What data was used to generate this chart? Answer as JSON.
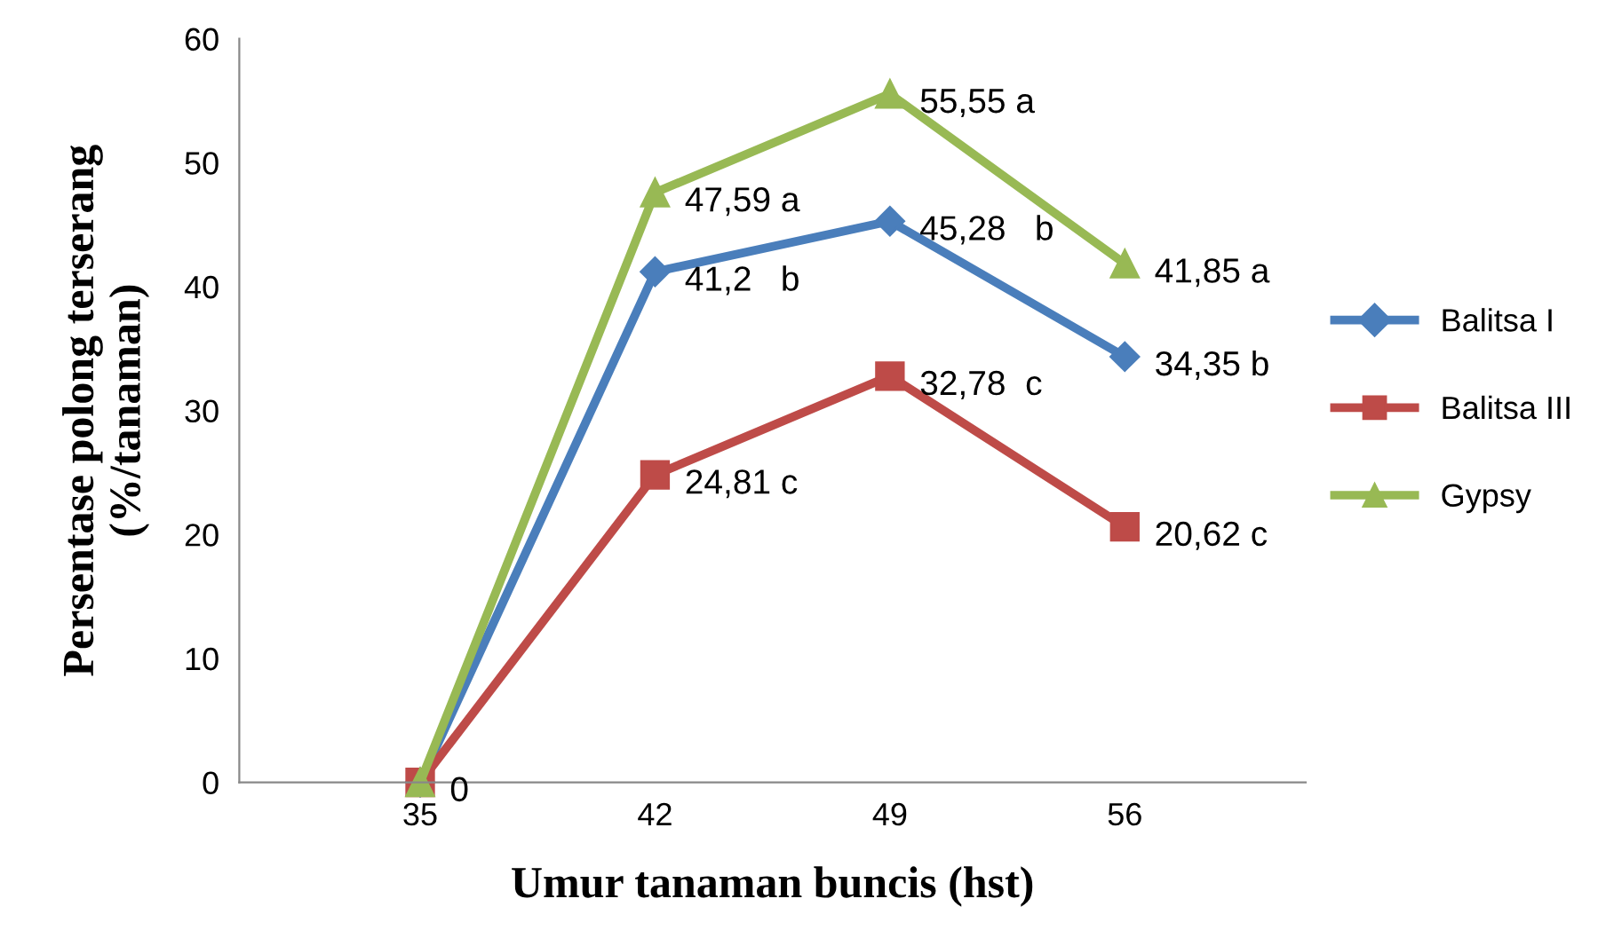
{
  "chart_data": {
    "type": "line",
    "xlabel": "Umur tanaman buncis (hst)",
    "ylabel": "Persentase polong terserang\n(%/tanaman)",
    "categories": [
      "35",
      "42",
      "49",
      "56"
    ],
    "ylim": [
      0,
      60
    ],
    "yticks": [
      0,
      10,
      20,
      30,
      40,
      50,
      60
    ],
    "grid": false,
    "legend": "right",
    "line_style": "solid",
    "series": [
      {
        "name": "Balitsa I",
        "color": "#4a7ebb",
        "marker": "diamond",
        "values": [
          0,
          41.2,
          45.28,
          34.35
        ],
        "value_labels": [
          null,
          "41,2   b",
          "45,28   b",
          "34,35 b"
        ]
      },
      {
        "name": "Balitsa III",
        "color": "#be4b48",
        "marker": "square",
        "values": [
          0,
          24.81,
          32.78,
          20.62
        ],
        "value_labels": [
          "0",
          "24,81 c",
          "32,78  c",
          "20,62 c"
        ]
      },
      {
        "name": "Gypsy",
        "color": "#98b954",
        "marker": "triangle",
        "values": [
          0,
          47.59,
          55.55,
          41.85
        ],
        "value_labels": [
          null,
          "47,59 a",
          "55,55 a",
          "41,85 a"
        ]
      }
    ]
  }
}
